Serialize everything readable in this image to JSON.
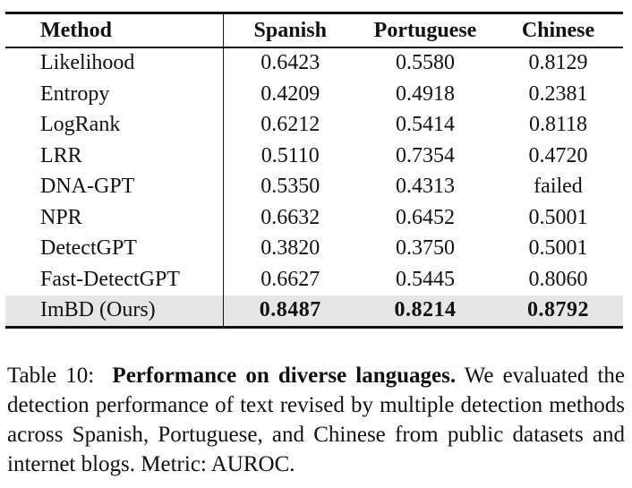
{
  "table": {
    "headers": [
      "Method",
      "Spanish",
      "Portuguese",
      "Chinese"
    ],
    "rows": [
      {
        "method": "Likelihood",
        "spanish": "0.6423",
        "portuguese": "0.5580",
        "chinese": "0.8129"
      },
      {
        "method": "Entropy",
        "spanish": "0.4209",
        "portuguese": "0.4918",
        "chinese": "0.2381"
      },
      {
        "method": "LogRank",
        "spanish": "0.6212",
        "portuguese": "0.5414",
        "chinese": "0.8118"
      },
      {
        "method": "LRR",
        "spanish": "0.5110",
        "portuguese": "0.7354",
        "chinese": "0.4720"
      },
      {
        "method": "DNA-GPT",
        "spanish": "0.5350",
        "portuguese": "0.4313",
        "chinese": "failed"
      },
      {
        "method": "NPR",
        "spanish": "0.6632",
        "portuguese": "0.6452",
        "chinese": "0.5001"
      },
      {
        "method": "DetectGPT",
        "spanish": "0.3820",
        "portuguese": "0.3750",
        "chinese": "0.5001"
      },
      {
        "method": "Fast-DetectGPT",
        "spanish": "0.6627",
        "portuguese": "0.5445",
        "chinese": "0.8060"
      },
      {
        "method": "ImBD (Ours)",
        "spanish": "0.8487",
        "portuguese": "0.8214",
        "chinese": "0.8792"
      }
    ]
  },
  "caption": {
    "label": "Table 10:",
    "title": "Performance on diverse languages.",
    "body": "We evaluated the detection performance of text revised by multiple detection methods across Spanish, Portuguese, and Chinese from public datasets and internet blogs. Metric: AUROC."
  },
  "colors": {
    "highlight_row": "#e6e6e6",
    "rule": "#111111"
  }
}
